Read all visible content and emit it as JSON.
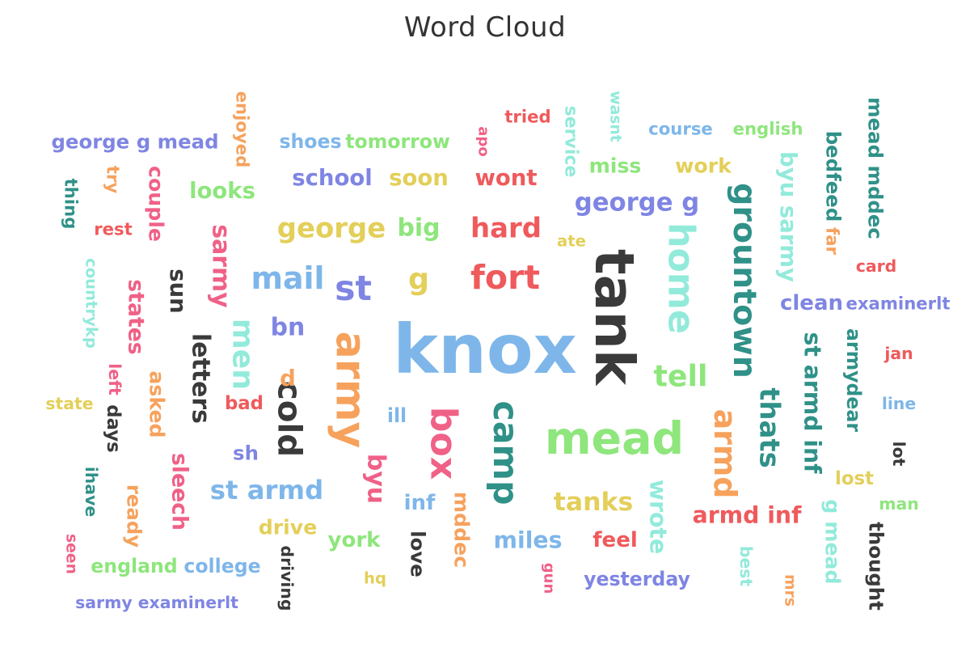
{
  "chart_data": {
    "type": "wordcloud",
    "title": "Word Cloud",
    "palette": {
      "blue": "#7eb6ea",
      "green": "#8ee67c",
      "red": "#ef5a5c",
      "yellow": "#e3cf59",
      "purple": "#7f85e3",
      "orange": "#f6a25d",
      "pink": "#f06187",
      "teal": "#2f9188",
      "aqua": "#92eada",
      "dark": "#3a3a3a"
    },
    "words": [
      {
        "text": "knox",
        "color": "blue",
        "weight": 100
      },
      {
        "text": "tank",
        "color": "dark",
        "weight": 78
      },
      {
        "text": "mead",
        "color": "green",
        "weight": 64
      },
      {
        "text": "army",
        "color": "orange",
        "weight": 58
      },
      {
        "text": "home",
        "color": "aqua",
        "weight": 50
      },
      {
        "text": "box",
        "color": "pink",
        "weight": 50
      },
      {
        "text": "camp",
        "color": "teal",
        "weight": 48
      },
      {
        "text": "st",
        "color": "purple",
        "weight": 48
      },
      {
        "text": "fort",
        "color": "red",
        "weight": 46
      },
      {
        "text": "cold",
        "color": "dark",
        "weight": 45
      },
      {
        "text": "grountown",
        "color": "teal",
        "weight": 44
      },
      {
        "text": "mail",
        "color": "blue",
        "weight": 42
      },
      {
        "text": "armd",
        "color": "orange",
        "weight": 42
      },
      {
        "text": "men",
        "color": "aqua",
        "weight": 40
      },
      {
        "text": "tell",
        "color": "green",
        "weight": 40
      },
      {
        "text": "g",
        "color": "yellow",
        "weight": 40
      },
      {
        "text": "thats",
        "color": "teal",
        "weight": 37
      },
      {
        "text": "george",
        "color": "yellow",
        "weight": 37
      },
      {
        "text": "hard",
        "color": "red",
        "weight": 37
      },
      {
        "text": "st armd",
        "color": "blue",
        "weight": 35
      },
      {
        "text": "tanks",
        "color": "yellow",
        "weight": 34
      },
      {
        "text": "george g",
        "color": "purple",
        "weight": 33
      },
      {
        "text": "byu",
        "color": "pink",
        "weight": 32
      },
      {
        "text": "big",
        "color": "green",
        "weight": 32
      },
      {
        "text": "letters",
        "color": "dark",
        "weight": 32
      },
      {
        "text": "sarmy",
        "color": "pink",
        "weight": 32
      },
      {
        "text": "bn",
        "color": "purple",
        "weight": 32
      },
      {
        "text": "st armd inf",
        "color": "teal",
        "weight": 30
      },
      {
        "text": "wrote",
        "color": "aqua",
        "weight": 30
      },
      {
        "text": "armd inf",
        "color": "red",
        "weight": 30
      },
      {
        "text": "miles",
        "color": "blue",
        "weight": 30
      },
      {
        "text": "byu sarmy",
        "color": "aqua",
        "weight": 29
      },
      {
        "text": "sun",
        "color": "dark",
        "weight": 29
      },
      {
        "text": "d",
        "color": "orange",
        "weight": 29
      },
      {
        "text": "school",
        "color": "purple",
        "weight": 29
      },
      {
        "text": "soon",
        "color": "yellow",
        "weight": 29
      },
      {
        "text": "wont",
        "color": "red",
        "weight": 29
      },
      {
        "text": "looks",
        "color": "green",
        "weight": 29
      },
      {
        "text": "states",
        "color": "pink",
        "weight": 28
      },
      {
        "text": "sleech",
        "color": "pink",
        "weight": 28
      },
      {
        "text": "clean",
        "color": "purple",
        "weight": 27
      },
      {
        "text": "york",
        "color": "green",
        "weight": 27
      },
      {
        "text": "feel",
        "color": "red",
        "weight": 27
      },
      {
        "text": "inf",
        "color": "blue",
        "weight": 27
      },
      {
        "text": "couple",
        "color": "pink",
        "weight": 26
      },
      {
        "text": "asked",
        "color": "orange",
        "weight": 26
      },
      {
        "text": "mddec",
        "color": "orange",
        "weight": 26
      },
      {
        "text": "g mead",
        "color": "aqua",
        "weight": 26
      },
      {
        "text": "miss",
        "color": "green",
        "weight": 26
      },
      {
        "text": "work",
        "color": "yellow",
        "weight": 26
      },
      {
        "text": "drive",
        "color": "yellow",
        "weight": 26
      },
      {
        "text": "thought",
        "color": "dark",
        "weight": 25
      },
      {
        "text": "mead mddec",
        "color": "teal",
        "weight": 25
      },
      {
        "text": "bedfeed",
        "color": "teal",
        "weight": 25
      },
      {
        "text": "george g mead",
        "color": "purple",
        "weight": 25
      },
      {
        "text": "ready",
        "color": "orange",
        "weight": 25
      },
      {
        "text": "love",
        "color": "dark",
        "weight": 25
      },
      {
        "text": "sh",
        "color": "purple",
        "weight": 25
      },
      {
        "text": "yesterday",
        "color": "purple",
        "weight": 24
      },
      {
        "text": "armydear",
        "color": "teal",
        "weight": 24
      },
      {
        "text": "shoes",
        "color": "blue",
        "weight": 24
      },
      {
        "text": "tomorrow",
        "color": "green",
        "weight": 24
      },
      {
        "text": "college",
        "color": "blue",
        "weight": 24
      },
      {
        "text": "england",
        "color": "green",
        "weight": 24
      },
      {
        "text": "ill",
        "color": "blue",
        "weight": 24
      },
      {
        "text": "days",
        "color": "dark",
        "weight": 23
      },
      {
        "text": "lost",
        "color": "yellow",
        "weight": 23
      },
      {
        "text": "bad",
        "color": "red",
        "weight": 23
      },
      {
        "text": "service",
        "color": "aqua",
        "weight": 22
      },
      {
        "text": "enjoyed",
        "color": "orange",
        "weight": 21
      },
      {
        "text": "examinerlt",
        "color": "purple",
        "weight": 21
      },
      {
        "text": "tried",
        "color": "red",
        "weight": 21
      },
      {
        "text": "english",
        "color": "green",
        "weight": 21
      },
      {
        "text": "course",
        "color": "blue",
        "weight": 21
      },
      {
        "text": "far",
        "color": "orange",
        "weight": 21
      },
      {
        "text": "thing",
        "color": "teal",
        "weight": 21
      },
      {
        "text": "rest",
        "color": "red",
        "weight": 21
      },
      {
        "text": "try",
        "color": "orange",
        "weight": 21
      },
      {
        "text": "sarmy examinerlt",
        "color": "purple",
        "weight": 20
      },
      {
        "text": "card",
        "color": "red",
        "weight": 20
      },
      {
        "text": "jan",
        "color": "red",
        "weight": 20
      },
      {
        "text": "line",
        "color": "blue",
        "weight": 20
      },
      {
        "text": "man",
        "color": "green",
        "weight": 20
      },
      {
        "text": "state",
        "color": "yellow",
        "weight": 20
      },
      {
        "text": "ihave",
        "color": "teal",
        "weight": 20
      },
      {
        "text": "left",
        "color": "pink",
        "weight": 20
      },
      {
        "text": "driving",
        "color": "dark",
        "weight": 20
      },
      {
        "text": "lot",
        "color": "dark",
        "weight": 20
      },
      {
        "text": "best",
        "color": "aqua",
        "weight": 20
      },
      {
        "text": "countrykp",
        "color": "aqua",
        "weight": 19
      },
      {
        "text": "ate",
        "color": "yellow",
        "weight": 19
      },
      {
        "text": "hq",
        "color": "yellow",
        "weight": 19
      },
      {
        "text": "wasnt",
        "color": "aqua",
        "weight": 18
      },
      {
        "text": "seen",
        "color": "pink",
        "weight": 18
      },
      {
        "text": "mrs",
        "color": "orange",
        "weight": 18
      },
      {
        "text": "apo",
        "color": "pink",
        "weight": 17
      },
      {
        "text": "gun",
        "color": "pink",
        "weight": 17
      }
    ]
  }
}
